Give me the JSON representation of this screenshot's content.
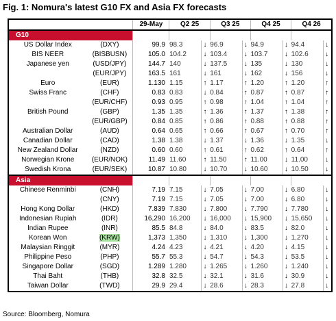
{
  "title": "Fig. 1: Nomura's latest G10 FX and Asia FX forecasts",
  "header": [
    "29-May",
    "Q2 25",
    "Q3 25",
    "Q4 25",
    "Q4 26"
  ],
  "sections": [
    {
      "name": "G10",
      "rows": [
        [
          "US Dollar Index",
          "(DXY)",
          "99.9",
          "98.3",
          "↓",
          "96.9",
          "↓",
          "94.9",
          "↓",
          "94.4",
          "↓"
        ],
        [
          "BIS NEER",
          "(BISBUSN)",
          "105.0",
          "104.2",
          "↓",
          "103.4",
          "↓",
          "103.7",
          "↓",
          "102.6",
          "↓"
        ],
        [
          "Japanese yen",
          "(USD/JPY)",
          "144.7",
          "140",
          "↓",
          "137.5",
          "↓",
          "135",
          "↓",
          "130",
          "↓"
        ],
        [
          null,
          "(EUR/JPY)",
          "163.5",
          "161",
          "↓",
          "161",
          "↓",
          "162",
          "↓",
          "156",
          "↓"
        ],
        [
          "Euro",
          "(EUR)",
          "1.130",
          "1.15",
          "↑",
          "1.17",
          "↑",
          "1.20",
          "↑",
          "1.20",
          "↑"
        ],
        [
          "Swiss Franc",
          "(CHF)",
          "0.83",
          "0.83",
          "↓",
          "0.84",
          "↑",
          "0.87",
          "↑",
          "0.87",
          "↑"
        ],
        [
          null,
          "(EUR/CHF)",
          "0.93",
          "0.95",
          "↑",
          "0.98",
          "↑",
          "1.04",
          "↑",
          "1.04",
          "↑"
        ],
        [
          "British Pound",
          "(GBP)",
          "1.35",
          "1.35",
          "↑",
          "1.36",
          "↑",
          "1.37",
          "↑",
          "1.38",
          "↑"
        ],
        [
          null,
          "(EUR/GBP)",
          "0.84",
          "0.85",
          "↑",
          "0.86",
          "↑",
          "0.88",
          "↑",
          "0.88",
          "↑"
        ],
        [
          "Australian Dollar",
          "(AUD)",
          "0.64",
          "0.65",
          "↑",
          "0.66",
          "↑",
          "0.67",
          "↑",
          "0.70",
          "↑"
        ],
        [
          "Canadian Dollar",
          "(CAD)",
          "1.38",
          "1.38",
          "↓",
          "1.37",
          "↓",
          "1.36",
          "↓",
          "1.35",
          "↓"
        ],
        [
          "New Zealand Dollar",
          "(NZD)",
          "0.60",
          "0.60",
          "↑",
          "0.61",
          "↑",
          "0.62",
          "↑",
          "0.64",
          "↑"
        ],
        [
          "Norwegian Krone",
          "(EUR/NOK)",
          "11.49",
          "11.60",
          "↑",
          "11.50",
          "↑",
          "11.00",
          "↓",
          "11.00",
          "↓"
        ],
        [
          "Swedish Krona",
          "(EUR/SEK)",
          "10.87",
          "10.80",
          "↓",
          "10.70",
          "↓",
          "10.60",
          "↓",
          "10.50",
          "↓"
        ]
      ]
    },
    {
      "name": "Asia",
      "rows": [
        [
          "Chinese Renminbi",
          "(CNH)",
          "7.19",
          "7.15",
          "↓",
          "7.05",
          "↓",
          "7.00",
          "↓",
          "6.80",
          "↓"
        ],
        [
          null,
          "(CNY)",
          "7.19",
          "7.15",
          "↓",
          "7.05",
          "↓",
          "7.00",
          "↓",
          "6.80",
          "↓"
        ],
        [
          "Hong Kong Dollar",
          "(HKD)",
          "7.839",
          "7.830",
          "↓",
          "7.800",
          "↓",
          "7.790",
          "↓",
          "7.780",
          "↓"
        ],
        [
          "Indonesian Rupiah",
          "(IDR)",
          "16,290",
          "16,200",
          "↓",
          "16,000",
          "↓",
          "15,900",
          "↓",
          "15,650",
          "↓"
        ],
        [
          "Indian Rupee",
          "(INR)",
          "85.5",
          "84.8",
          "↓",
          "84.0",
          "↓",
          "83.5",
          "↓",
          "82.0",
          "↓"
        ],
        [
          "Korean Won",
          "(KRW)",
          "1,373",
          "1,350",
          "↓",
          "1,310",
          "↓",
          "1,300",
          "↓",
          "1,270",
          "↓"
        ],
        [
          "Malaysian Ringgit",
          "(MYR)",
          "4.24",
          "4.23",
          "↓",
          "4.21",
          "↓",
          "4.20",
          "↓",
          "4.15",
          "↓"
        ],
        [
          "Philippine Peso",
          "(PHP)",
          "55.7",
          "55.3",
          "↓",
          "54.7",
          "↓",
          "54.3",
          "↓",
          "53.5",
          "↓"
        ],
        [
          "Singapore Dollar",
          "(SGD)",
          "1.289",
          "1.280",
          "↓",
          "1.265",
          "↓",
          "1.260",
          "↓",
          "1.240",
          "↓"
        ],
        [
          "Thai Baht",
          "(THB)",
          "32.8",
          "32.5",
          "↓",
          "32.1",
          "↓",
          "31.6",
          "↓",
          "30.9",
          "↓"
        ],
        [
          "Taiwan Dollar",
          "(TWD)",
          "29.9",
          "29.4",
          "↓",
          "28.6",
          "↓",
          "28.3",
          "↓",
          "27.8",
          "↓"
        ]
      ]
    }
  ],
  "source": "Source: Bloomberg, Nomura"
}
